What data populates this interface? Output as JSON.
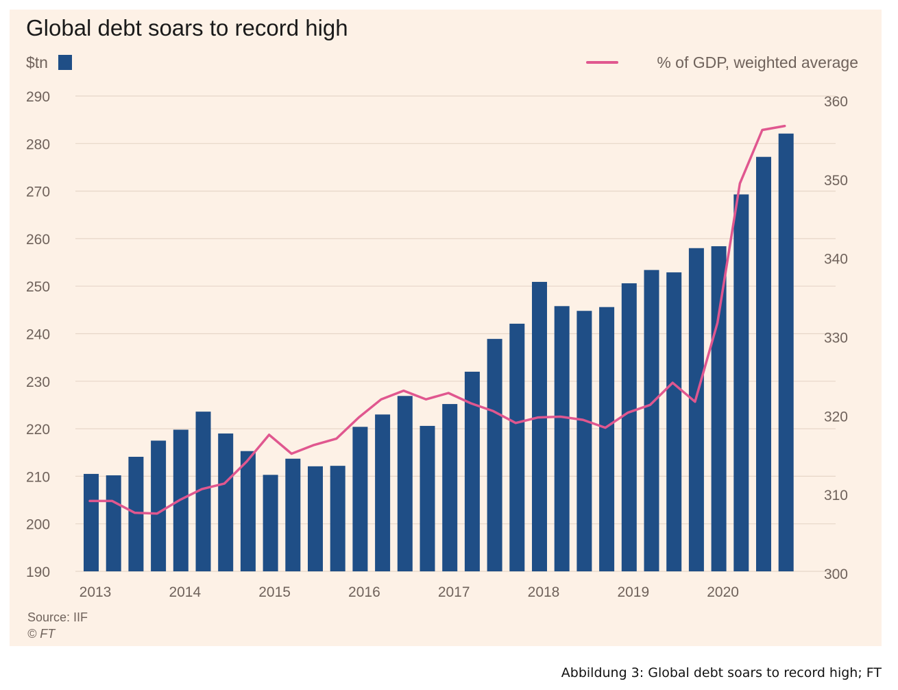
{
  "caption": "Abbildung 3: Global debt soars to record high; FT",
  "colors": {
    "background": "#fdf1e6",
    "bar": "#1f4e86",
    "line": "#e0578f",
    "grid": "#e6d6c8",
    "text": "#6f625b",
    "title": "#1a1a1a"
  },
  "chart_data": {
    "type": "bar",
    "title": "Global debt soars to record high",
    "left_axis_label": "$tn",
    "legend": {
      "bar_label": "$tn",
      "line_label": "% of GDP, weighted average",
      "placement": "top"
    },
    "ylim_left": [
      190,
      290
    ],
    "yticks_left": [
      "290",
      "280",
      "270",
      "260",
      "250",
      "240",
      "230",
      "220",
      "210",
      "200",
      "190"
    ],
    "ylim_right": [
      300,
      360
    ],
    "yticks_right": [
      "360",
      "350",
      "340",
      "330",
      "320",
      "310",
      "300"
    ],
    "x_tick_labels": [
      "2013",
      "2014",
      "2015",
      "2016",
      "2017",
      "2018",
      "2019",
      "2020"
    ],
    "grid": "horizontal",
    "series": [
      {
        "type": "bar",
        "axis": "left",
        "quarters": [
          "2013 Q1",
          "2013 Q2",
          "2013 Q3",
          "2013 Q4",
          "2014 Q1",
          "2014 Q2",
          "2014 Q3",
          "2014 Q4",
          "2015 Q1",
          "2015 Q2",
          "2015 Q3",
          "2015 Q4",
          "2016 Q1",
          "2016 Q2",
          "2016 Q3",
          "2016 Q4",
          "2017 Q1",
          "2017 Q2",
          "2017 Q3",
          "2017 Q4",
          "2018 Q1",
          "2018 Q2",
          "2018 Q3",
          "2018 Q4",
          "2019 Q1",
          "2019 Q2",
          "2019 Q3",
          "2019 Q4",
          "2020 Q1",
          "2020 Q2",
          "2020 Q3",
          "2020 Q4"
        ],
        "values": [
          210.5,
          210.2,
          214.1,
          217.5,
          219.8,
          223.6,
          219.0,
          215.3,
          210.3,
          213.7,
          212.1,
          212.2,
          220.4,
          223.0,
          226.9,
          220.6,
          225.2,
          232.0,
          238.9,
          242.1,
          250.9,
          245.8,
          244.8,
          245.6,
          250.6,
          253.4,
          252.9,
          258.0,
          258.4,
          269.3,
          277.2,
          282.1
        ]
      },
      {
        "type": "line",
        "name": "% of GDP, weighted average",
        "axis": "right",
        "values": [
          309.2,
          309.2,
          307.7,
          307.6,
          309.3,
          310.7,
          311.4,
          314.2,
          317.6,
          315.2,
          316.3,
          317.1,
          319.8,
          322.1,
          323.2,
          322.1,
          322.9,
          321.6,
          320.6,
          319.1,
          319.8,
          319.9,
          319.5,
          318.5,
          320.4,
          321.4,
          324.2,
          321.8,
          331.8,
          349.5,
          356.3,
          356.8
        ]
      }
    ],
    "source": "Source: IIF",
    "copyright": "© FT"
  }
}
